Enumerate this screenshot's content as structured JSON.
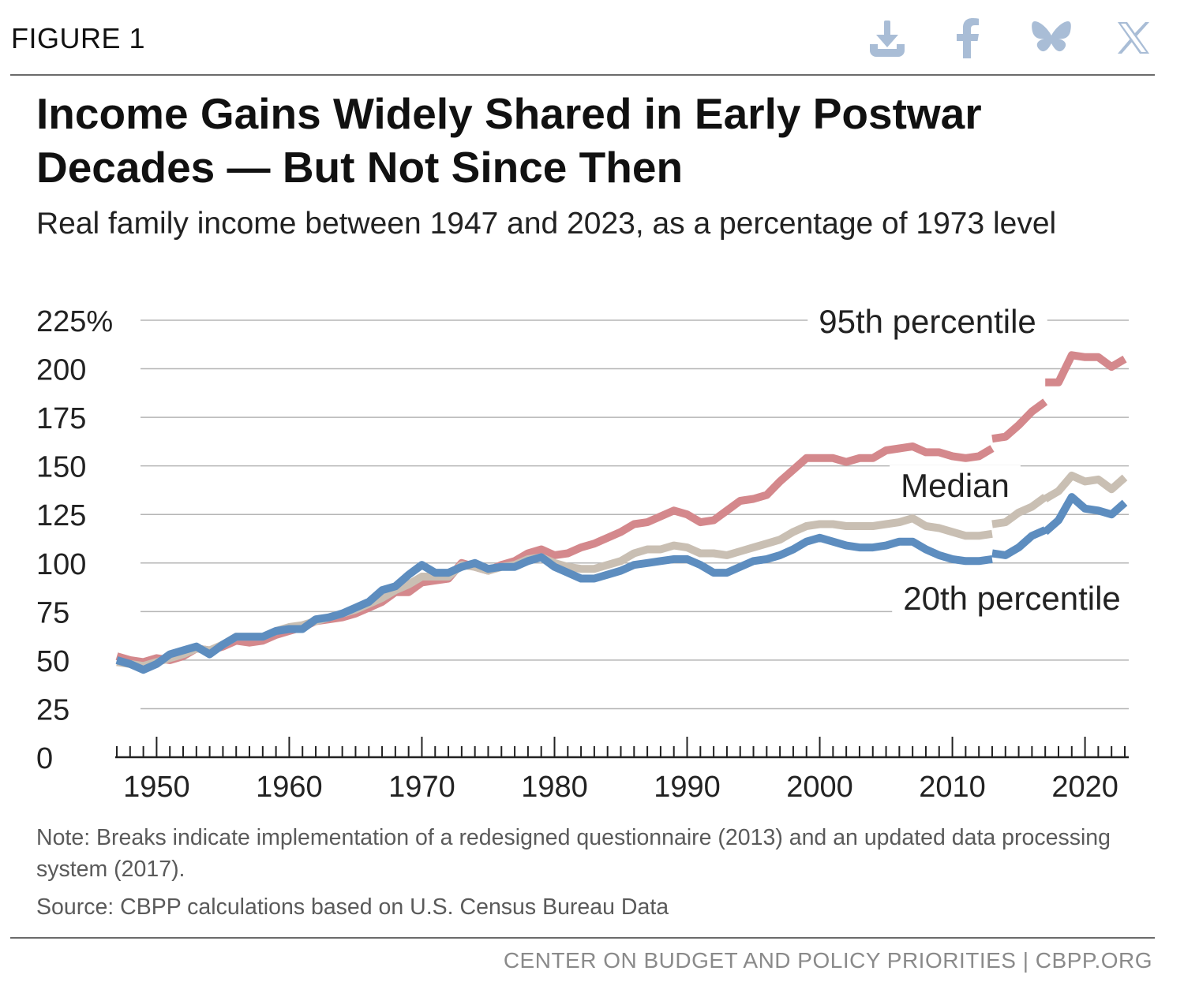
{
  "header": {
    "figure_label": "FIGURE 1",
    "share_icons": [
      "download-icon",
      "facebook-icon",
      "bluesky-icon",
      "x-icon"
    ],
    "icon_color": "#a9bdd6"
  },
  "title": "Income Gains Widely Shared in Early Postwar Decades — But Not Since Then",
  "subtitle": "Real family income between 1947 and 2023, as a percentage of 1973 level",
  "chart_data": {
    "type": "line",
    "y_unit_suffix": "%",
    "ylim": [
      0,
      225
    ],
    "xlim": [
      1947,
      2023
    ],
    "yticks": [
      0,
      25,
      50,
      75,
      100,
      125,
      150,
      175,
      200,
      225
    ],
    "xticks": [
      1950,
      1960,
      1970,
      1980,
      1990,
      2000,
      2010,
      2020
    ],
    "grid": true,
    "breaks": [
      2013,
      2017
    ],
    "series": [
      {
        "name": "95th percentile",
        "color": "#d4888c",
        "x": [
          1947,
          1948,
          1949,
          1950,
          1951,
          1952,
          1953,
          1954,
          1955,
          1956,
          1957,
          1958,
          1959,
          1960,
          1961,
          1962,
          1963,
          1964,
          1965,
          1966,
          1967,
          1968,
          1969,
          1970,
          1971,
          1972,
          1973,
          1974,
          1975,
          1976,
          1977,
          1978,
          1979,
          1980,
          1981,
          1982,
          1983,
          1984,
          1985,
          1986,
          1987,
          1988,
          1989,
          1990,
          1991,
          1992,
          1993,
          1994,
          1995,
          1996,
          1997,
          1998,
          1999,
          2000,
          2001,
          2002,
          2003,
          2004,
          2005,
          2006,
          2007,
          2008,
          2009,
          2010,
          2011,
          2012,
          2013,
          2013,
          2014,
          2015,
          2016,
          2017,
          2017,
          2018,
          2019,
          2020,
          2021,
          2022,
          2023
        ],
        "values": [
          52,
          50,
          49,
          51,
          50,
          52,
          56,
          55,
          57,
          60,
          59,
          60,
          63,
          65,
          67,
          70,
          71,
          72,
          74,
          77,
          80,
          85,
          85,
          90,
          91,
          92,
          100,
          98,
          96,
          99,
          101,
          105,
          107,
          104,
          105,
          108,
          110,
          113,
          116,
          120,
          121,
          124,
          127,
          125,
          121,
          122,
          127,
          132,
          133,
          135,
          142,
          148,
          154,
          154,
          154,
          152,
          154,
          154,
          158,
          159,
          160,
          157,
          157,
          155,
          154,
          155,
          159,
          164,
          165,
          171,
          178,
          183,
          193,
          193,
          207,
          206,
          206,
          201,
          205
        ]
      },
      {
        "name": "Median",
        "color": "#c9bfb3",
        "x": [
          1947,
          1948,
          1949,
          1950,
          1951,
          1952,
          1953,
          1954,
          1955,
          1956,
          1957,
          1958,
          1959,
          1960,
          1961,
          1962,
          1963,
          1964,
          1965,
          1966,
          1967,
          1968,
          1969,
          1970,
          1971,
          1972,
          1973,
          1974,
          1975,
          1976,
          1977,
          1978,
          1979,
          1980,
          1981,
          1982,
          1983,
          1984,
          1985,
          1986,
          1987,
          1988,
          1989,
          1990,
          1991,
          1992,
          1993,
          1994,
          1995,
          1996,
          1997,
          1998,
          1999,
          2000,
          2001,
          2002,
          2003,
          2004,
          2005,
          2006,
          2007,
          2008,
          2009,
          2010,
          2011,
          2012,
          2013,
          2013,
          2014,
          2015,
          2016,
          2017,
          2017,
          2018,
          2019,
          2020,
          2021,
          2022,
          2023
        ],
        "values": [
          49,
          48,
          47,
          49,
          51,
          53,
          56,
          55,
          58,
          62,
          62,
          62,
          65,
          67,
          68,
          70,
          72,
          74,
          76,
          79,
          82,
          86,
          89,
          93,
          93,
          93,
          99,
          98,
          96,
          98,
          99,
          102,
          103,
          100,
          98,
          97,
          97,
          99,
          101,
          105,
          107,
          107,
          109,
          108,
          105,
          105,
          104,
          106,
          108,
          110,
          112,
          116,
          119,
          120,
          120,
          119,
          119,
          119,
          120,
          121,
          123,
          119,
          118,
          116,
          114,
          114,
          115,
          120,
          121,
          126,
          129,
          134,
          133,
          137,
          145,
          142,
          143,
          138,
          144
        ]
      },
      {
        "name": "20th percentile",
        "color": "#5d8dbf",
        "x": [
          1947,
          1948,
          1949,
          1950,
          1951,
          1952,
          1953,
          1954,
          1955,
          1956,
          1957,
          1958,
          1959,
          1960,
          1961,
          1962,
          1963,
          1964,
          1965,
          1966,
          1967,
          1968,
          1969,
          1970,
          1971,
          1972,
          1973,
          1974,
          1975,
          1976,
          1977,
          1978,
          1979,
          1980,
          1981,
          1982,
          1983,
          1984,
          1985,
          1986,
          1987,
          1988,
          1989,
          1990,
          1991,
          1992,
          1993,
          1994,
          1995,
          1996,
          1997,
          1998,
          1999,
          2000,
          2001,
          2002,
          2003,
          2004,
          2005,
          2006,
          2007,
          2008,
          2009,
          2010,
          2011,
          2012,
          2013,
          2013,
          2014,
          2015,
          2016,
          2017,
          2017,
          2018,
          2019,
          2020,
          2021,
          2022,
          2023
        ],
        "values": [
          50,
          48,
          45,
          48,
          53,
          55,
          57,
          53,
          58,
          62,
          62,
          62,
          65,
          66,
          66,
          71,
          72,
          74,
          77,
          80,
          86,
          88,
          94,
          99,
          95,
          95,
          98,
          100,
          97,
          98,
          98,
          101,
          103,
          98,
          95,
          92,
          92,
          94,
          96,
          99,
          100,
          101,
          102,
          102,
          99,
          95,
          95,
          98,
          101,
          102,
          104,
          107,
          111,
          113,
          111,
          109,
          108,
          108,
          109,
          111,
          111,
          107,
          104,
          102,
          101,
          101,
          102,
          105,
          104,
          108,
          114,
          117,
          116,
          122,
          134,
          128,
          127,
          125,
          131
        ]
      }
    ],
    "labels": {
      "p95": "95th percentile",
      "median": "Median",
      "p20": "20th percentile"
    }
  },
  "note": "Note: Breaks indicate implementation of a redesigned questionnaire (2013) and an updated data processing system (2017).",
  "source": "Source: CBPP calculations based on U.S. Census Bureau Data",
  "footer": "CENTER ON BUDGET AND POLICY PRIORITIES | CBPP.ORG"
}
